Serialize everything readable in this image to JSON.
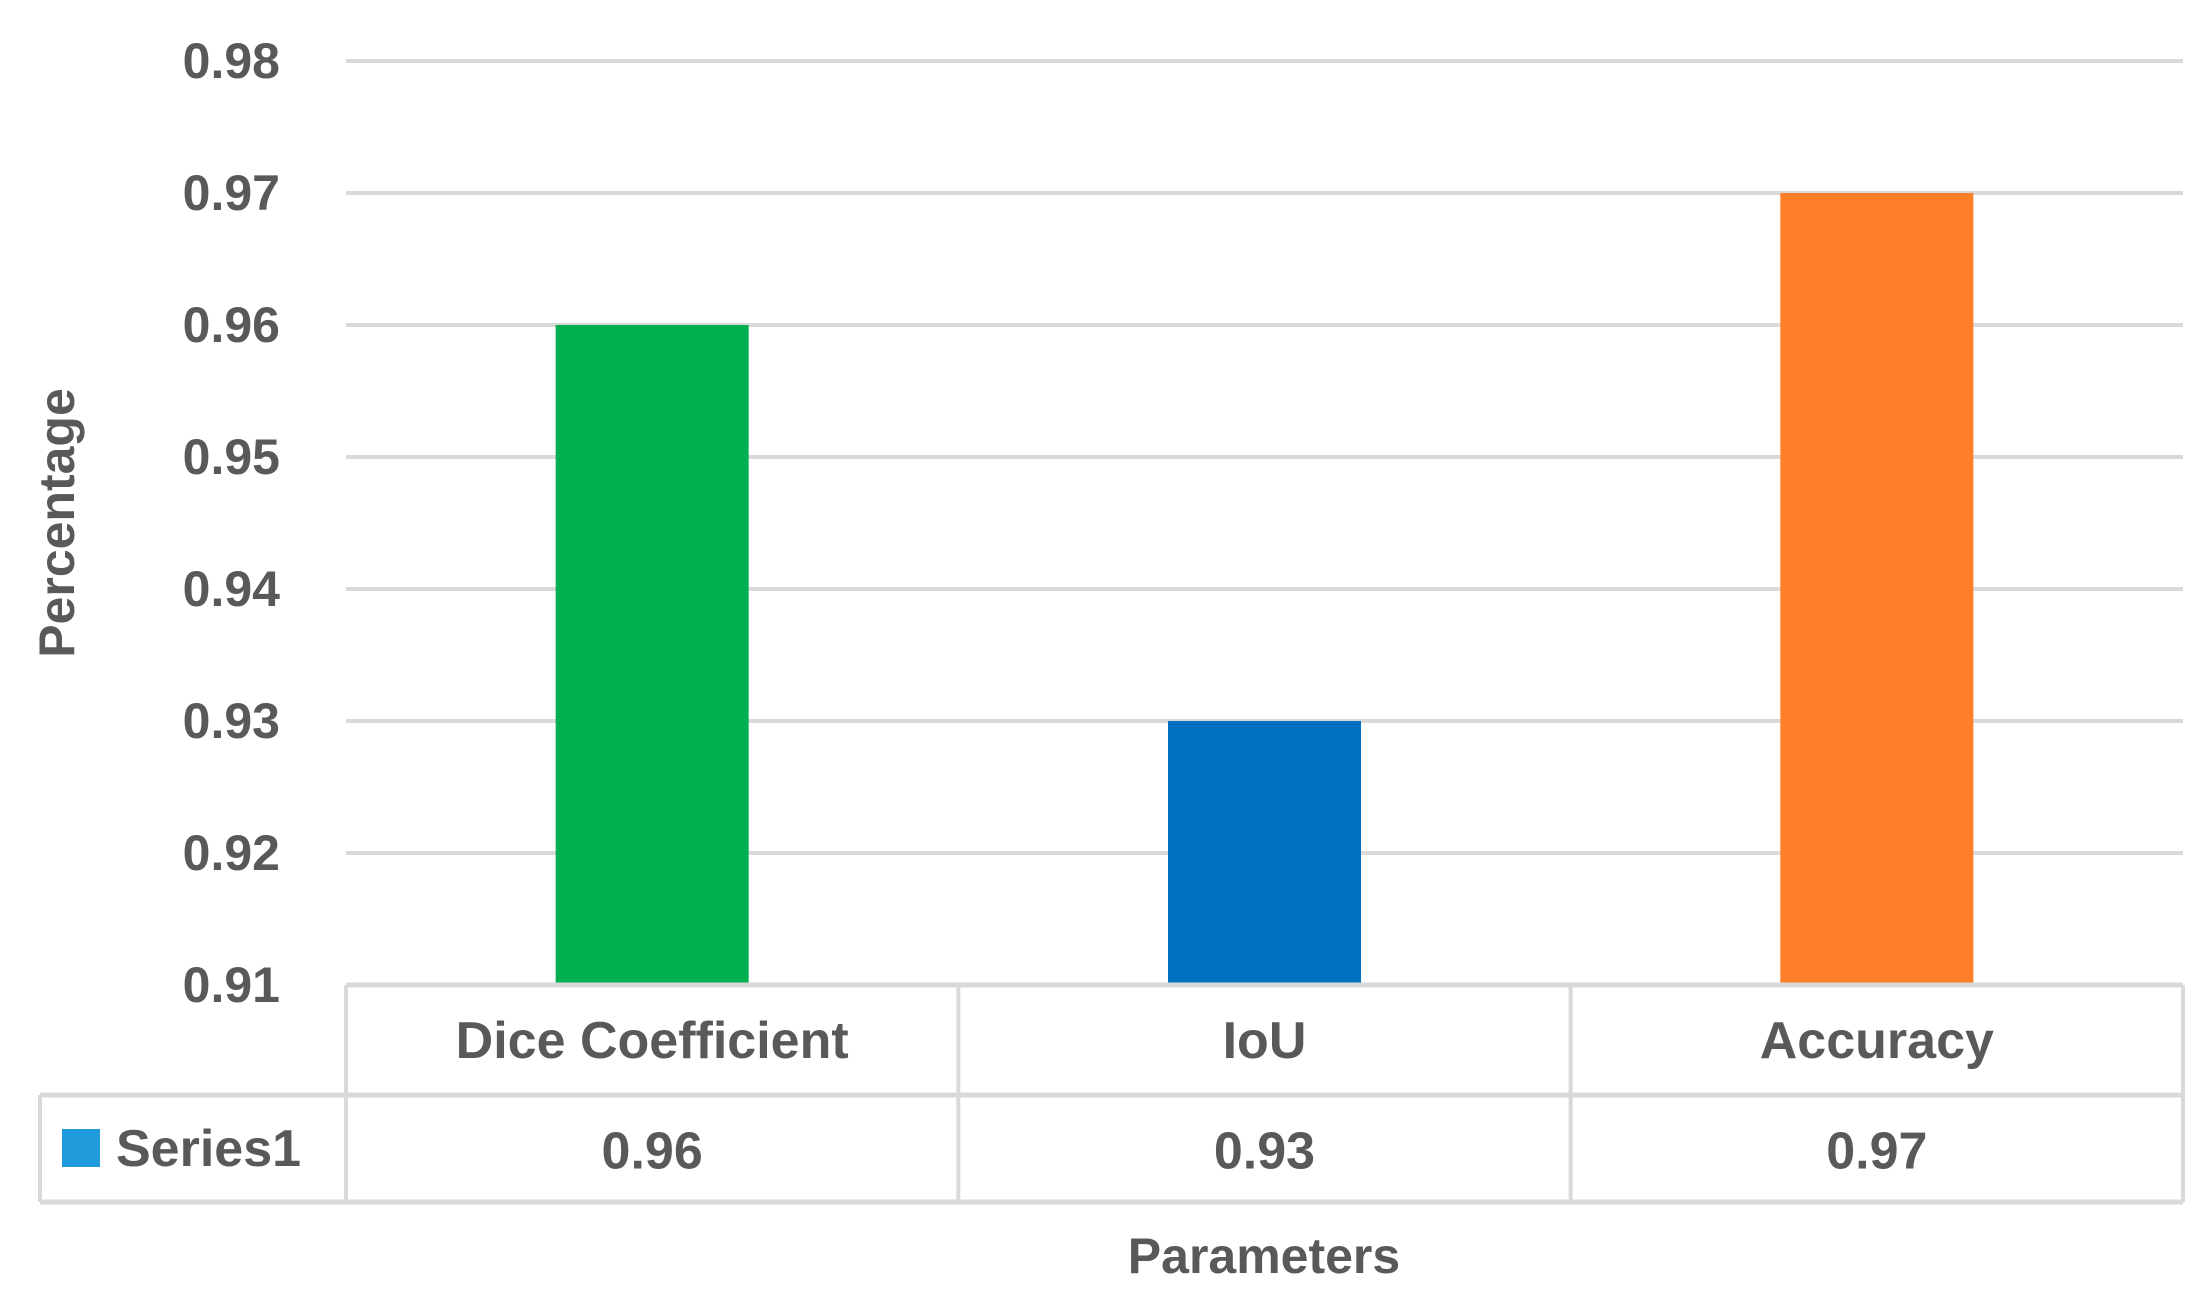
{
  "chart_data": {
    "type": "bar",
    "title": "",
    "xlabel": "Parameters",
    "ylabel": "Percentage",
    "categories": [
      "Dice Coefficient",
      "IoU",
      "Accuracy"
    ],
    "series": [
      {
        "name": "Series1",
        "values": [
          0.96,
          0.93,
          0.97
        ],
        "value_labels": [
          "0.96",
          "0.93",
          "0.97"
        ],
        "legend_color": "#1f9bdc"
      }
    ],
    "bar_colors": [
      "#00b050",
      "#0070c0",
      "#fd7f27"
    ],
    "ylim": [
      0.91,
      0.98
    ],
    "yticks": [
      "0.98",
      "0.97",
      "0.96",
      "0.95",
      "0.94",
      "0.93",
      "0.92",
      "0.91"
    ],
    "grid": true,
    "data_table": true,
    "legend_placement": "data-table-left"
  }
}
